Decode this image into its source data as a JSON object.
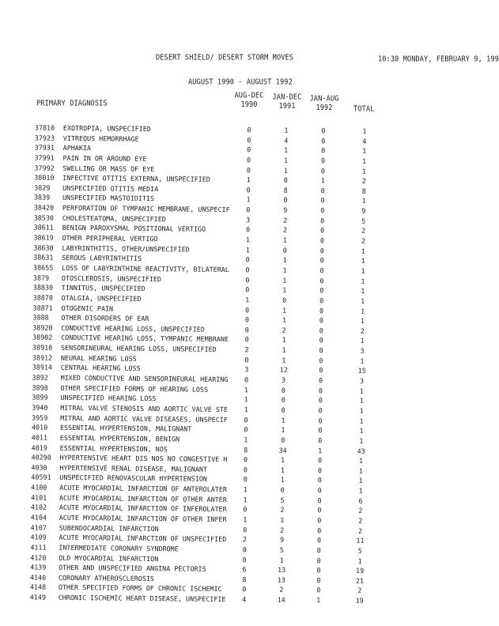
{
  "header": {
    "title": "DESERT SHIELD/ DESERT STORM MOVES",
    "timestamp": "10:30 MONDAY, FEBRUARY 9, 199",
    "subtitle": "AUGUST 1990 - AUGUST 1992"
  },
  "columns": {
    "diagnosis": "PRIMARY DIAGNOSIS",
    "c1": [
      "AUG-DEC",
      "1990"
    ],
    "c2": [
      "JAN-DEC",
      "1991"
    ],
    "c3": [
      "JAN-AUG",
      "1992"
    ],
    "total": "TOTAL"
  },
  "rows": [
    [
      "37810",
      "EXOTROPIA, UNSPECIFIED",
      "0",
      "1",
      "0",
      "1"
    ],
    [
      "37923",
      "VITREOUS HEMORRHAGE",
      "0",
      "4",
      "0",
      "4"
    ],
    [
      "37931",
      "APHAKIA",
      "0",
      "1",
      "0",
      "1"
    ],
    [
      "37991",
      "PAIN IN OR AROUND EYE",
      "0",
      "1",
      "0",
      "1"
    ],
    [
      "37992",
      "SWELLING OR MASS OF EYE",
      "0",
      "1",
      "0",
      "1"
    ],
    [
      "38010",
      "INFECTIVE OTITIS EXTERNA, UNSPECIFIED",
      "1",
      "0",
      "1",
      "2"
    ],
    [
      "3829",
      "UNSPECIFIED OTITIS MEDIA",
      "0",
      "8",
      "0",
      "8"
    ],
    [
      "3839",
      "UNSPECIFIED MASTOIDITIS",
      "1",
      "0",
      "0",
      "1"
    ],
    [
      "38420",
      "PERFORATION OF TYMPANIC MEMBRANE, UNSPECIF",
      "0",
      "9",
      "0",
      "9"
    ],
    [
      "38530",
      "CHOLESTEATOMA, UNSPECIFIED",
      "3",
      "2",
      "0",
      "5"
    ],
    [
      "38611",
      "BENIGN PAROXYSMAL POSITIONAL VERTIGO",
      "0",
      "2",
      "0",
      "2"
    ],
    [
      "38619",
      "OTHER PERIPHERAL VERTIGO",
      "1",
      "1",
      "0",
      "2"
    ],
    [
      "38630",
      "LABYRINTHITIS, OTHER/UNSPECIFIED",
      "1",
      "0",
      "0",
      "1"
    ],
    [
      "38631",
      "SEROUS LABYRINTHITIS",
      "0",
      "1",
      "0",
      "1"
    ],
    [
      "38655",
      "LOSS OF LABYRINTHINE REACTIVITY, BILATERAL",
      "0",
      "1",
      "0",
      "1"
    ],
    [
      "3879",
      "OTOSCLEROSIS, UNSPECIFIED",
      "0",
      "1",
      "0",
      "1"
    ],
    [
      "38830",
      "TINNITUS, UNSPECIFIED",
      "0",
      "1",
      "0",
      "1"
    ],
    [
      "38870",
      "OTALGIA, UNSPECIFIED",
      "1",
      "0",
      "0",
      "1"
    ],
    [
      "38871",
      "OTOGENIC PAIN",
      "0",
      "1",
      "0",
      "1"
    ],
    [
      "3888",
      "OTHER DISORDERS OF EAR",
      "0",
      "1",
      "0",
      "1"
    ],
    [
      "38920",
      "CONDUCTIVE HEARING LOSS, UNSPECIFIED",
      "0",
      "2",
      "0",
      "2"
    ],
    [
      "38902",
      "CONDUCTIVE HEARING LOSS, TYMPANIC MEMBRANE",
      "0",
      "1",
      "0",
      "1"
    ],
    [
      "38910",
      "SENSORINEURAL HEARING LOSS, UNSPECIFIED",
      "2",
      "1",
      "0",
      "3"
    ],
    [
      "38912",
      "NEURAL HEARING LOSS",
      "0",
      "1",
      "0",
      "1"
    ],
    [
      "38914",
      "CENTRAL HEARING LOSS",
      "3",
      "12",
      "0",
      "15"
    ],
    [
      "3892",
      "MIXED CONDUCTIVE AND SENSORINEURAL HEARING",
      "0",
      "3",
      "0",
      "3"
    ],
    [
      "3898",
      "OTHER SPECIFIED FORMS OF HEARING LOSS",
      "1",
      "0",
      "0",
      "1"
    ],
    [
      "3899",
      "UNSPECIFIED HEARING LOSS",
      "1",
      "0",
      "0",
      "1"
    ],
    [
      "3940",
      "MITRAL VALVE STENOSIS AND AORTIC VALVE STE",
      "1",
      "0",
      "0",
      "1"
    ],
    [
      "3959",
      "MITRAL AND AORTIC VALVE DISEASES, UNSPECIF",
      "0",
      "1",
      "0",
      "1"
    ],
    [
      "4010",
      "ESSENTIAL HYPERTENSION, MALIGNANT",
      "0",
      "1",
      "0",
      "1"
    ],
    [
      "4011",
      "ESSENTIAL HYPERTENSION, BENIGN",
      "1",
      "0",
      "0",
      "1"
    ],
    [
      "4019",
      "ESSENTIAL HYPERTENSION, NOS",
      "8",
      "34",
      "1",
      "43"
    ],
    [
      "40290",
      "HYPERTENSIVE HEART DIS NOS NO CONGESTIVE H",
      "0",
      "1",
      "0",
      "1"
    ],
    [
      "4030",
      "HYPERTENSIVE RENAL DISEASE, MALIGNANT",
      "0",
      "1",
      "0",
      "1"
    ],
    [
      "40591",
      "UNSPECIFIED RENOVASCULAR HYPERTENSION",
      "0",
      "1",
      "0",
      "1"
    ],
    [
      "4100",
      "ACUTE MYOCARDIAL INFARCTION OF ANTEROLATER",
      "1",
      "0",
      "0",
      "1"
    ],
    [
      "4101",
      "ACUTE MYOCARDIAL INFARCTION OF OTHER ANTER",
      "1",
      "5",
      "0",
      "6"
    ],
    [
      "4102",
      "ACUTE MYOCARDIAL INFARCTION OF INFEROLATER",
      "0",
      "2",
      "0",
      "2"
    ],
    [
      "4104",
      "ACUTE MYOCARDIAL INFARCTION OF OTHER INFER",
      "1",
      "1",
      "0",
      "2"
    ],
    [
      "4107",
      "SUBENDOCARDIAL INFARCTION",
      "0",
      "2",
      "0",
      "2"
    ],
    [
      "4109",
      "ACUTE MYOCARDIAL INFARCTION OF UNSPECIFIED",
      "2",
      "9",
      "0",
      "11"
    ],
    [
      "4111",
      "INTERMEDIATE CORONARY SYNDROME",
      "0",
      "5",
      "0",
      "5"
    ],
    [
      "4120",
      "OLD MYOCARDIAL INFARCTION",
      "0",
      "1",
      "0",
      "1"
    ],
    [
      "4139",
      "OTHER AND UNSPECIFIED ANGINA PECTORIS",
      "6",
      "13",
      "0",
      "19"
    ],
    [
      "4140",
      "CORONARY ATHEROSCLEROSIS",
      "8",
      "13",
      "0",
      "21"
    ],
    [
      "4148",
      "OTHER SPECIFIED FORMS OF CHRONIC ISCHEMIC",
      "0",
      "2",
      "0",
      "2"
    ],
    [
      "4149",
      "CHRONIC ISCHEMIC HEART DISEASE, UNSPECIFIE",
      "4",
      "14",
      "1",
      "19"
    ]
  ]
}
